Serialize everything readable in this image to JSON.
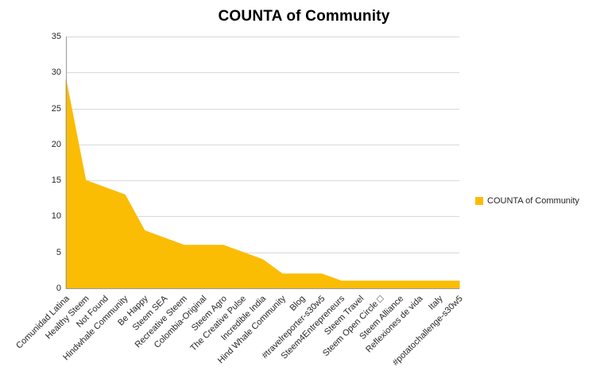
{
  "chart_data": {
    "type": "area",
    "title": "COUNTA of Community",
    "legend": "COUNTA of Community",
    "legend_position": "right",
    "categories": [
      "Comunidad Latina",
      "Healthy Steem",
      "Not Found",
      "Hindwhale Community",
      "Be Happy",
      "Steem SEA",
      "Recreative Steem",
      "Colombia-Original",
      "Steem Agro",
      "The Creative Pulse",
      "Incredible India",
      "Hind Whale Community",
      "Blog",
      "#travelreporter-s30w5",
      "Steem4Entrepreneurs",
      "Steem Travel",
      "Steem Open Circle □",
      "Steem Alliance",
      "Reflexiones de vida",
      "Italy",
      "#potatochallenge-s30w5"
    ],
    "values": [
      29,
      15,
      14,
      13,
      8,
      7,
      6,
      6,
      6,
      5,
      4,
      2,
      2,
      2,
      1,
      1,
      1,
      1,
      1,
      1,
      1
    ],
    "xlabel": "",
    "ylabel": "",
    "ylim": [
      0,
      35
    ],
    "yticks": [
      0,
      5,
      10,
      15,
      20,
      25,
      30,
      35
    ],
    "grid": true,
    "series_color": "#FBBC04",
    "gridline_color": "#D9D9D9",
    "axis_color": "#9B9B9B",
    "label_rotation_deg": -45
  }
}
